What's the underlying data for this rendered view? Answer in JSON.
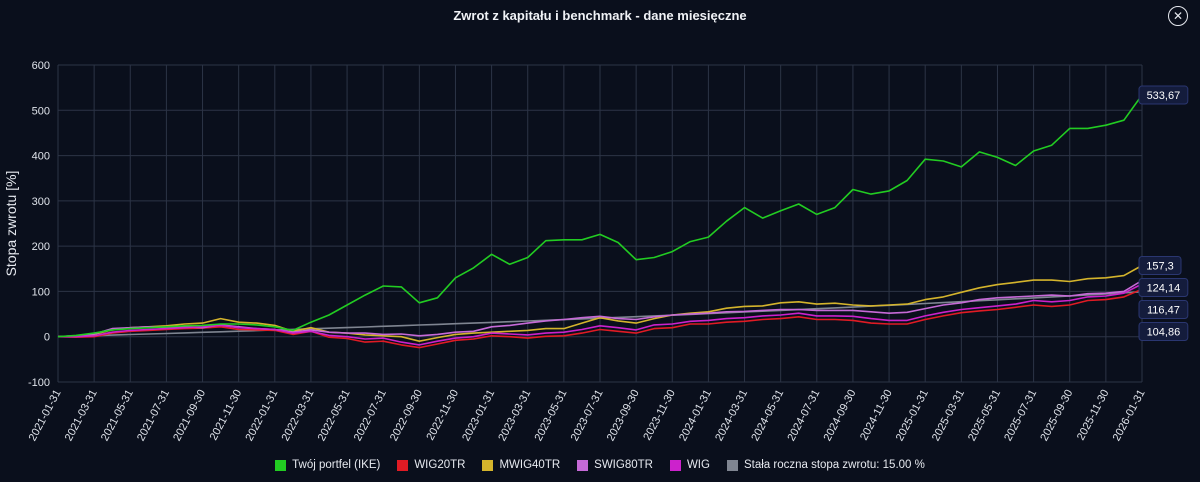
{
  "header": {
    "title": "Zwrot z kapitału i benchmark - dane miesięczne",
    "close_icon": "close-circle-icon"
  },
  "chart_data": {
    "type": "line",
    "title": "Zwrot z kapitału i benchmark - dane miesięczne",
    "xlabel": "",
    "ylabel": "Stopa zwrotu [%]",
    "ylim": [
      -100,
      600
    ],
    "yticks": [
      "-100",
      "0",
      "100",
      "200",
      "300",
      "400",
      "500",
      "600"
    ],
    "grid": true,
    "legend_position": "bottom",
    "x": [
      "2021-01-31",
      "2021-02-28",
      "2021-03-31",
      "2021-04-30",
      "2021-05-31",
      "2021-06-30",
      "2021-07-31",
      "2021-08-31",
      "2021-09-30",
      "2021-10-31",
      "2021-11-30",
      "2021-12-31",
      "2022-01-31",
      "2022-02-28",
      "2022-03-31",
      "2022-04-30",
      "2022-05-31",
      "2022-06-30",
      "2022-07-31",
      "2022-08-31",
      "2022-09-30",
      "2022-10-31",
      "2022-11-30",
      "2022-12-31",
      "2023-01-31",
      "2023-02-28",
      "2023-03-31",
      "2023-04-30",
      "2023-05-31",
      "2023-06-30",
      "2023-07-31",
      "2023-08-31",
      "2023-09-30",
      "2023-10-31",
      "2023-11-30",
      "2023-12-31",
      "2024-01-31",
      "2024-02-29",
      "2024-03-31",
      "2024-04-30",
      "2024-05-31",
      "2024-06-30",
      "2024-07-31",
      "2024-08-31",
      "2024-09-30",
      "2024-10-31",
      "2024-11-30",
      "2024-12-31",
      "2025-01-31",
      "2025-02-28",
      "2025-03-31",
      "2025-04-30",
      "2025-05-31",
      "2025-06-30",
      "2025-07-31",
      "2025-08-31",
      "2025-09-30",
      "2025-10-31",
      "2025-11-30",
      "2025-12-31",
      "2026-01-31"
    ],
    "xtick_labels": [
      "2021-01-31",
      "2021-03-31",
      "2021-05-31",
      "2021-07-31",
      "2021-09-30",
      "2021-11-30",
      "2022-01-31",
      "2022-03-31",
      "2022-05-31",
      "2022-07-31",
      "2022-09-30",
      "2022-11-30",
      "2023-01-31",
      "2023-03-31",
      "2023-05-31",
      "2023-07-31",
      "2023-09-30",
      "2023-11-30",
      "2024-01-31",
      "2024-03-31",
      "2024-05-31",
      "2024-07-31",
      "2024-09-30",
      "2024-11-30",
      "2025-01-31",
      "2025-03-31",
      "2025-05-31",
      "2025-07-31",
      "2025-09-30",
      "2025-11-30",
      "2026-01-31"
    ],
    "series": [
      {
        "name": "Stała roczna stopa zwrotu: 15.00 %",
        "color": "#7f8591",
        "values": [
          0,
          1.2,
          2.3,
          3.5,
          4.8,
          6,
          7.2,
          8.4,
          9.7,
          10.9,
          12.2,
          13.5,
          14.8,
          16.1,
          17.4,
          18.8,
          20.2,
          21.5,
          22.9,
          24.3,
          25.8,
          27.2,
          28.7,
          30.1,
          31.6,
          33.1,
          34.7,
          36.2,
          37.8,
          39.4,
          41,
          42.6,
          44.2,
          45.9,
          47.6,
          49.3,
          51,
          52.7,
          54.5,
          56.3,
          58.1,
          59.9,
          61.8,
          63.6,
          65.5,
          67.5,
          69.4,
          71.4,
          73.3,
          75.4,
          77.4,
          79.5,
          81.6,
          83.7,
          85.8,
          88,
          90.2,
          92.4,
          94.6,
          96.9,
          99.2
        ]
      },
      {
        "name": "WIG20TR",
        "color": "#e01b24",
        "values": [
          0,
          -1,
          0,
          8,
          12,
          14,
          16,
          18,
          19,
          22,
          16,
          15,
          14,
          5,
          12,
          -1,
          -4,
          -12,
          -10,
          -18,
          -24,
          -16,
          -8,
          -5,
          2,
          0,
          -3,
          1,
          2,
          8,
          16,
          12,
          8,
          18,
          20,
          28,
          28,
          32,
          34,
          38,
          40,
          44,
          38,
          38,
          36,
          30,
          28,
          28,
          38,
          46,
          53,
          57,
          60,
          65,
          70,
          67,
          70,
          80,
          82,
          88,
          104.86
        ]
      },
      {
        "name": "MWIG40TR",
        "color": "#d4b42c",
        "values": [
          0,
          2,
          5,
          15,
          20,
          22,
          24,
          28,
          30,
          40,
          32,
          30,
          25,
          12,
          20,
          10,
          8,
          4,
          2,
          0,
          -10,
          -2,
          5,
          8,
          10,
          12,
          14,
          18,
          18,
          30,
          42,
          35,
          30,
          40,
          48,
          52,
          55,
          63,
          67,
          68,
          75,
          77,
          72,
          74,
          70,
          68,
          70,
          72,
          82,
          88,
          98,
          108,
          115,
          120,
          125,
          125,
          122,
          128,
          130,
          135,
          157.3
        ]
      },
      {
        "name": "SWIG80TR",
        "color": "#c66ad7",
        "values": [
          0,
          2,
          6,
          18,
          20,
          22,
          20,
          22,
          20,
          26,
          22,
          18,
          16,
          10,
          15,
          10,
          8,
          8,
          5,
          6,
          2,
          5,
          10,
          12,
          22,
          25,
          30,
          35,
          38,
          42,
          45,
          40,
          38,
          44,
          48,
          50,
          52,
          55,
          56,
          58,
          60,
          60,
          58,
          58,
          58,
          55,
          52,
          54,
          62,
          70,
          75,
          82,
          86,
          88,
          90,
          92,
          90,
          95,
          96,
          100,
          124.14
        ]
      },
      {
        "name": "WIG",
        "color": "#cc22cc",
        "values": [
          0,
          0,
          2,
          10,
          14,
          16,
          18,
          20,
          22,
          25,
          20,
          18,
          16,
          8,
          12,
          3,
          0,
          -5,
          -3,
          -12,
          -18,
          -10,
          -3,
          0,
          8,
          6,
          4,
          8,
          10,
          16,
          24,
          20,
          15,
          26,
          28,
          34,
          36,
          40,
          42,
          46,
          48,
          52,
          46,
          46,
          45,
          40,
          36,
          36,
          46,
          54,
          60,
          64,
          68,
          72,
          80,
          77,
          80,
          88,
          90,
          96,
          116.47
        ]
      },
      {
        "name": "Twój portfel (IKE)",
        "color": "#22cc22",
        "values": [
          0,
          3,
          8,
          15,
          18,
          20,
          22,
          24,
          25,
          28,
          28,
          26,
          22,
          14,
          32,
          48,
          70,
          92,
          112,
          110,
          75,
          86,
          130,
          152,
          182,
          160,
          175,
          212,
          214,
          214,
          226,
          208,
          170,
          175,
          188,
          210,
          220,
          255,
          285,
          262,
          278,
          293,
          270,
          285,
          325,
          315,
          322,
          345,
          392,
          388,
          375,
          408,
          396,
          378,
          410,
          423,
          460,
          460,
          467,
          478,
          533.67
        ]
      }
    ],
    "end_labels": [
      {
        "text": "533,67",
        "value": 533.67
      },
      {
        "text": "157,3",
        "value": 157.3
      },
      {
        "text": "104,86",
        "value": 104.86
      },
      {
        "text": "124,14",
        "value": 124.14
      },
      {
        "text": "116,47",
        "value": 116.47
      }
    ],
    "legend": [
      {
        "label": "Twój portfel (IKE)",
        "color": "#22cc22"
      },
      {
        "label": "WIG20TR",
        "color": "#e01b24"
      },
      {
        "label": "MWIG40TR",
        "color": "#d4b42c"
      },
      {
        "label": "SWIG80TR",
        "color": "#c66ad7"
      },
      {
        "label": "WIG",
        "color": "#cc22cc"
      },
      {
        "label": "Stała roczna stopa zwrotu: 15.00 %",
        "color": "#7f8591"
      }
    ]
  }
}
